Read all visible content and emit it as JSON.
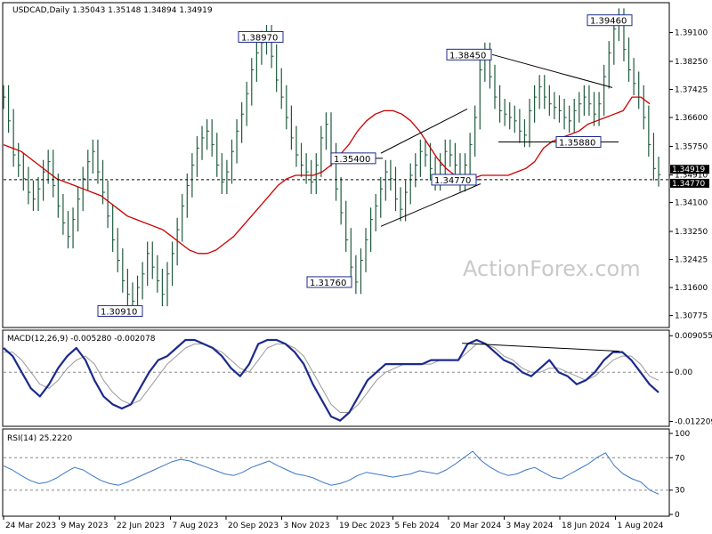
{
  "chart_data": [
    {
      "panel": "price",
      "type": "line",
      "title": "USDCAD,Daily  1.35043 1.35148 1.34894 1.34919",
      "watermark": "ActionForex.com",
      "ylim": [
        1.3045,
        1.3995
      ],
      "y_ticks": [
        "1.39100",
        "1.38250",
        "1.37425",
        "1.36600",
        "1.35750",
        "1.34910",
        "1.34100",
        "1.33250",
        "1.32425",
        "1.31600",
        "1.30775"
      ],
      "y_tick_values": [
        1.391,
        1.3825,
        1.37425,
        1.366,
        1.3575,
        1.3491,
        1.341,
        1.3325,
        1.32425,
        1.316,
        1.30775
      ],
      "current_price_label": "1.34919",
      "support_label": "1.34770",
      "x_ticks": [
        "24 Mar 2023",
        "9 May 2023",
        "22 Jun 2023",
        "7 Aug 2023",
        "20 Sep 2023",
        "3 Nov 2023",
        "19 Dec 2023",
        "5 Feb 2024",
        "20 Mar 2024",
        "3 May 2024",
        "18 Jun 2024",
        "1 Aug 2024"
      ],
      "annotations": [
        {
          "text": "1.38970",
          "x": "20 Sep 2023",
          "value": 1.3897
        },
        {
          "text": "1.30910",
          "x": "22 Jun 2023",
          "value": 1.3091
        },
        {
          "text": "1.35400",
          "x": "19 Dec 2023",
          "value": 1.354
        },
        {
          "text": "1.31760",
          "x": "19 Dec 2023",
          "value": 1.3176
        },
        {
          "text": "1.34770",
          "x": "5 Feb 2024",
          "value": 1.3477
        },
        {
          "text": "1.38450",
          "x": "20 Mar 2024",
          "value": 1.3845
        },
        {
          "text": "1.35880",
          "x": "18 Jun 2024",
          "value": 1.3588
        },
        {
          "text": "1.39460",
          "x": "1 Aug 2024",
          "value": 1.3946
        }
      ],
      "series": [
        {
          "values": [
            1.372,
            1.365,
            1.355,
            1.352,
            1.348,
            1.344,
            1.342,
            1.345,
            1.35,
            1.353,
            1.346,
            1.34,
            1.335,
            1.331,
            1.336,
            1.342,
            1.348,
            1.353,
            1.356,
            1.35,
            1.344,
            1.337,
            1.33,
            1.324,
            1.318,
            1.314,
            1.312,
            1.316,
            1.32,
            1.326,
            1.322,
            1.318,
            1.314,
            1.32,
            1.326,
            1.333,
            1.34,
            1.346,
            1.352,
            1.357,
            1.36,
            1.362,
            1.358,
            1.352,
            1.347,
            1.35,
            1.356,
            1.362,
            1.367,
            1.373,
            1.38,
            1.385,
            1.388,
            1.3897,
            1.384,
            1.377,
            1.372,
            1.366,
            1.36,
            1.355,
            1.352,
            1.35,
            1.347,
            1.352,
            1.36,
            1.364,
            1.355,
            1.345,
            1.338,
            1.33,
            1.322,
            1.3176,
            1.324,
            1.33,
            1.336,
            1.34,
            1.345,
            1.35,
            1.348,
            1.342,
            1.339,
            1.344,
            1.349,
            1.352,
            1.356,
            1.355,
            1.351,
            1.348,
            1.352,
            1.356,
            1.355,
            1.352,
            1.3477,
            1.352,
            1.358,
            1.366,
            1.38,
            1.3845,
            1.378,
            1.372,
            1.368,
            1.367,
            1.366,
            1.365,
            1.362,
            1.3608,
            1.368,
            1.372,
            1.375,
            1.372,
            1.37,
            1.369,
            1.368,
            1.366,
            1.365,
            1.368,
            1.37,
            1.372,
            1.37,
            1.367,
            1.37,
            1.378,
            1.385,
            1.392,
            1.3946,
            1.386,
            1.38,
            1.376,
            1.372,
            1.366,
            1.358,
            1.351,
            1.34919
          ]
        },
        {
          "name": "MA",
          "color": "#cc0000",
          "values": [
            1.358,
            1.357,
            1.356,
            1.354,
            1.352,
            1.35,
            1.348,
            1.347,
            1.346,
            1.345,
            1.344,
            1.343,
            1.341,
            1.339,
            1.337,
            1.336,
            1.335,
            1.334,
            1.333,
            1.331,
            1.329,
            1.327,
            1.326,
            1.326,
            1.327,
            1.329,
            1.331,
            1.334,
            1.337,
            1.34,
            1.343,
            1.346,
            1.348,
            1.349,
            1.349,
            1.349,
            1.35,
            1.352,
            1.355,
            1.358,
            1.362,
            1.365,
            1.367,
            1.368,
            1.368,
            1.367,
            1.365,
            1.362,
            1.358,
            1.354,
            1.351,
            1.349,
            1.348,
            1.348,
            1.349,
            1.349,
            1.349,
            1.349,
            1.35,
            1.351,
            1.353,
            1.357,
            1.359,
            1.36,
            1.361,
            1.362,
            1.364,
            1.365,
            1.366,
            1.367,
            1.368,
            1.372,
            1.372,
            1.37
          ]
        }
      ]
    },
    {
      "panel": "macd",
      "type": "line",
      "title": "MACD(12,26,9) -0.005280 -0.002078",
      "ylim": [
        -0.0132,
        0.0102
      ],
      "y_ticks": [
        "0.009055",
        "0.00",
        "-0.012209"
      ],
      "y_tick_values": [
        0.009055,
        0.0,
        -0.012209
      ],
      "series": [
        {
          "name": "MACD",
          "color": "#1c2a8c",
          "values": [
            0.006,
            0.004,
            0.0,
            -0.004,
            -0.006,
            -0.003,
            0.001,
            0.004,
            0.006,
            0.003,
            -0.002,
            -0.006,
            -0.008,
            -0.009,
            -0.008,
            -0.004,
            0.0,
            0.003,
            0.004,
            0.006,
            0.008,
            0.008,
            0.007,
            0.006,
            0.004,
            0.001,
            -0.001,
            0.002,
            0.007,
            0.008,
            0.008,
            0.007,
            0.005,
            0.002,
            -0.003,
            -0.007,
            -0.011,
            -0.012,
            -0.01,
            -0.006,
            -0.002,
            0.0,
            0.002,
            0.002,
            0.002,
            0.002,
            0.002,
            0.003,
            0.003,
            0.003,
            0.003,
            0.007,
            0.008,
            0.007,
            0.005,
            0.003,
            0.002,
            0.0,
            -0.001,
            0.001,
            0.003,
            0.0,
            -0.001,
            -0.003,
            -0.002,
            0.0,
            0.003,
            0.005,
            0.005,
            0.003,
            0.0,
            -0.003,
            -0.005
          ]
        },
        {
          "name": "Signal",
          "color": "#999999",
          "values": [
            0.005,
            0.005,
            0.003,
            0.0,
            -0.003,
            -0.004,
            -0.002,
            0.001,
            0.003,
            0.004,
            0.002,
            -0.002,
            -0.005,
            -0.007,
            -0.008,
            -0.007,
            -0.004,
            -0.001,
            0.002,
            0.004,
            0.006,
            0.007,
            0.007,
            0.006,
            0.005,
            0.003,
            0.001,
            0.0,
            0.003,
            0.006,
            0.007,
            0.007,
            0.006,
            0.004,
            0.0,
            -0.004,
            -0.008,
            -0.01,
            -0.01,
            -0.008,
            -0.005,
            -0.002,
            0.0,
            0.001,
            0.002,
            0.002,
            0.002,
            0.002,
            0.003,
            0.003,
            0.003,
            0.005,
            0.007,
            0.007,
            0.006,
            0.004,
            0.003,
            0.001,
            0.0,
            0.0,
            0.001,
            0.001,
            0.0,
            -0.001,
            -0.002,
            -0.001,
            0.001,
            0.003,
            0.004,
            0.004,
            0.002,
            -0.001,
            -0.002
          ]
        }
      ],
      "trendline": [
        {
          "x": 0.7,
          "y": 0.0072
        },
        {
          "x": 0.94,
          "y": 0.0052
        }
      ]
    },
    {
      "panel": "rsi",
      "type": "line",
      "title": "RSI(14) 25.2220",
      "ylim": [
        0,
        100
      ],
      "y_ticks": [
        "100",
        "70",
        "30",
        "0"
      ],
      "y_tick_values": [
        100,
        70,
        30,
        0
      ],
      "series": [
        {
          "name": "RSI",
          "color": "#3a78c8",
          "values": [
            60,
            55,
            48,
            42,
            38,
            40,
            45,
            52,
            58,
            55,
            48,
            42,
            38,
            36,
            40,
            45,
            50,
            55,
            60,
            65,
            68,
            66,
            62,
            58,
            54,
            50,
            48,
            52,
            58,
            62,
            66,
            60,
            55,
            50,
            48,
            45,
            40,
            36,
            38,
            42,
            48,
            52,
            50,
            48,
            46,
            48,
            50,
            54,
            52,
            50,
            55,
            62,
            70,
            78,
            66,
            58,
            52,
            48,
            50,
            55,
            58,
            52,
            46,
            44,
            50,
            56,
            62,
            70,
            76,
            60,
            50,
            44,
            40,
            30,
            25
          ]
        }
      ]
    }
  ]
}
